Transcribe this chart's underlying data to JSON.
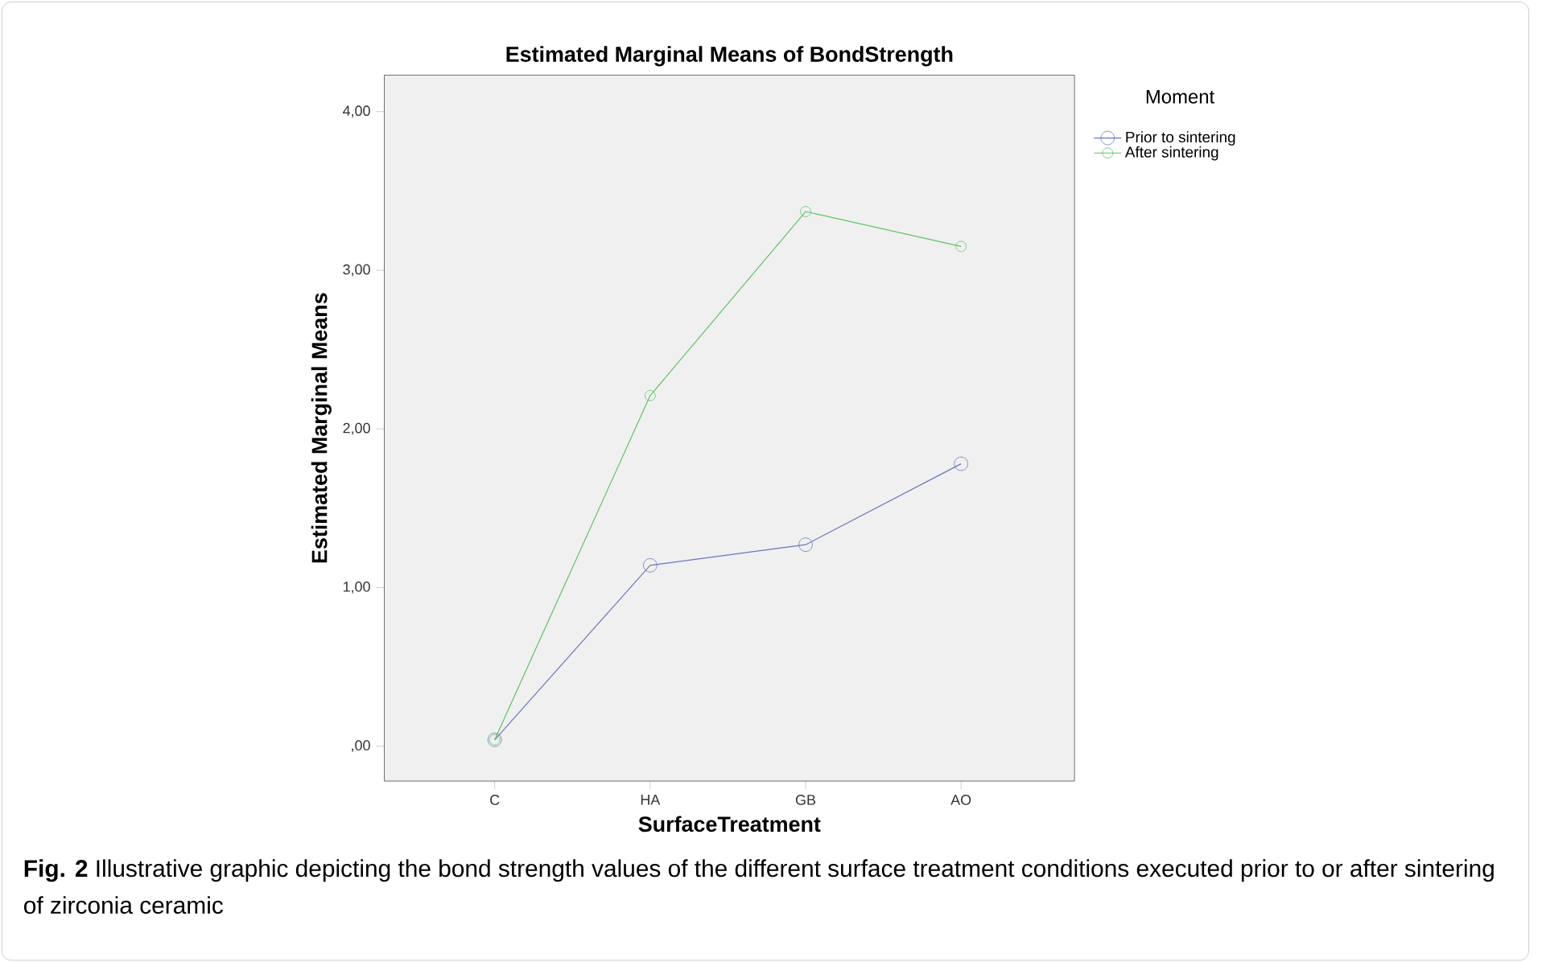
{
  "chart_data": {
    "type": "line",
    "title": "Estimated Marginal Means of BondStrength",
    "xlabel": "SurfaceTreatment",
    "ylabel": "Estimated Marginal Means",
    "legend_title": "Moment",
    "legend": "top right",
    "marker": "circle",
    "line_style": "solid",
    "grid": false,
    "categories": [
      "C",
      "HA",
      "GB",
      "AO"
    ],
    "ylim": [
      -0.22,
      4.23
    ],
    "yticks": [
      {
        "value": 0,
        "label": ",00"
      },
      {
        "value": 1,
        "label": "1,00"
      },
      {
        "value": 2,
        "label": "2,00"
      },
      {
        "value": 3,
        "label": "3,00"
      },
      {
        "value": 4,
        "label": "4,00"
      }
    ],
    "series": [
      {
        "name": "Prior to sintering",
        "color": "#6b75c2",
        "values": [
          0.04,
          1.14,
          1.27,
          1.78
        ]
      },
      {
        "name": "After sintering",
        "color": "#5cc462",
        "values": [
          0.04,
          2.21,
          3.37,
          3.15
        ]
      }
    ],
    "annotations": [
      "**Fig. 2** Illustrative graphic depicting the bond strength values of the different surface treatment conditions executed prior to or after sintering of zirconia ceramic"
    ]
  }
}
